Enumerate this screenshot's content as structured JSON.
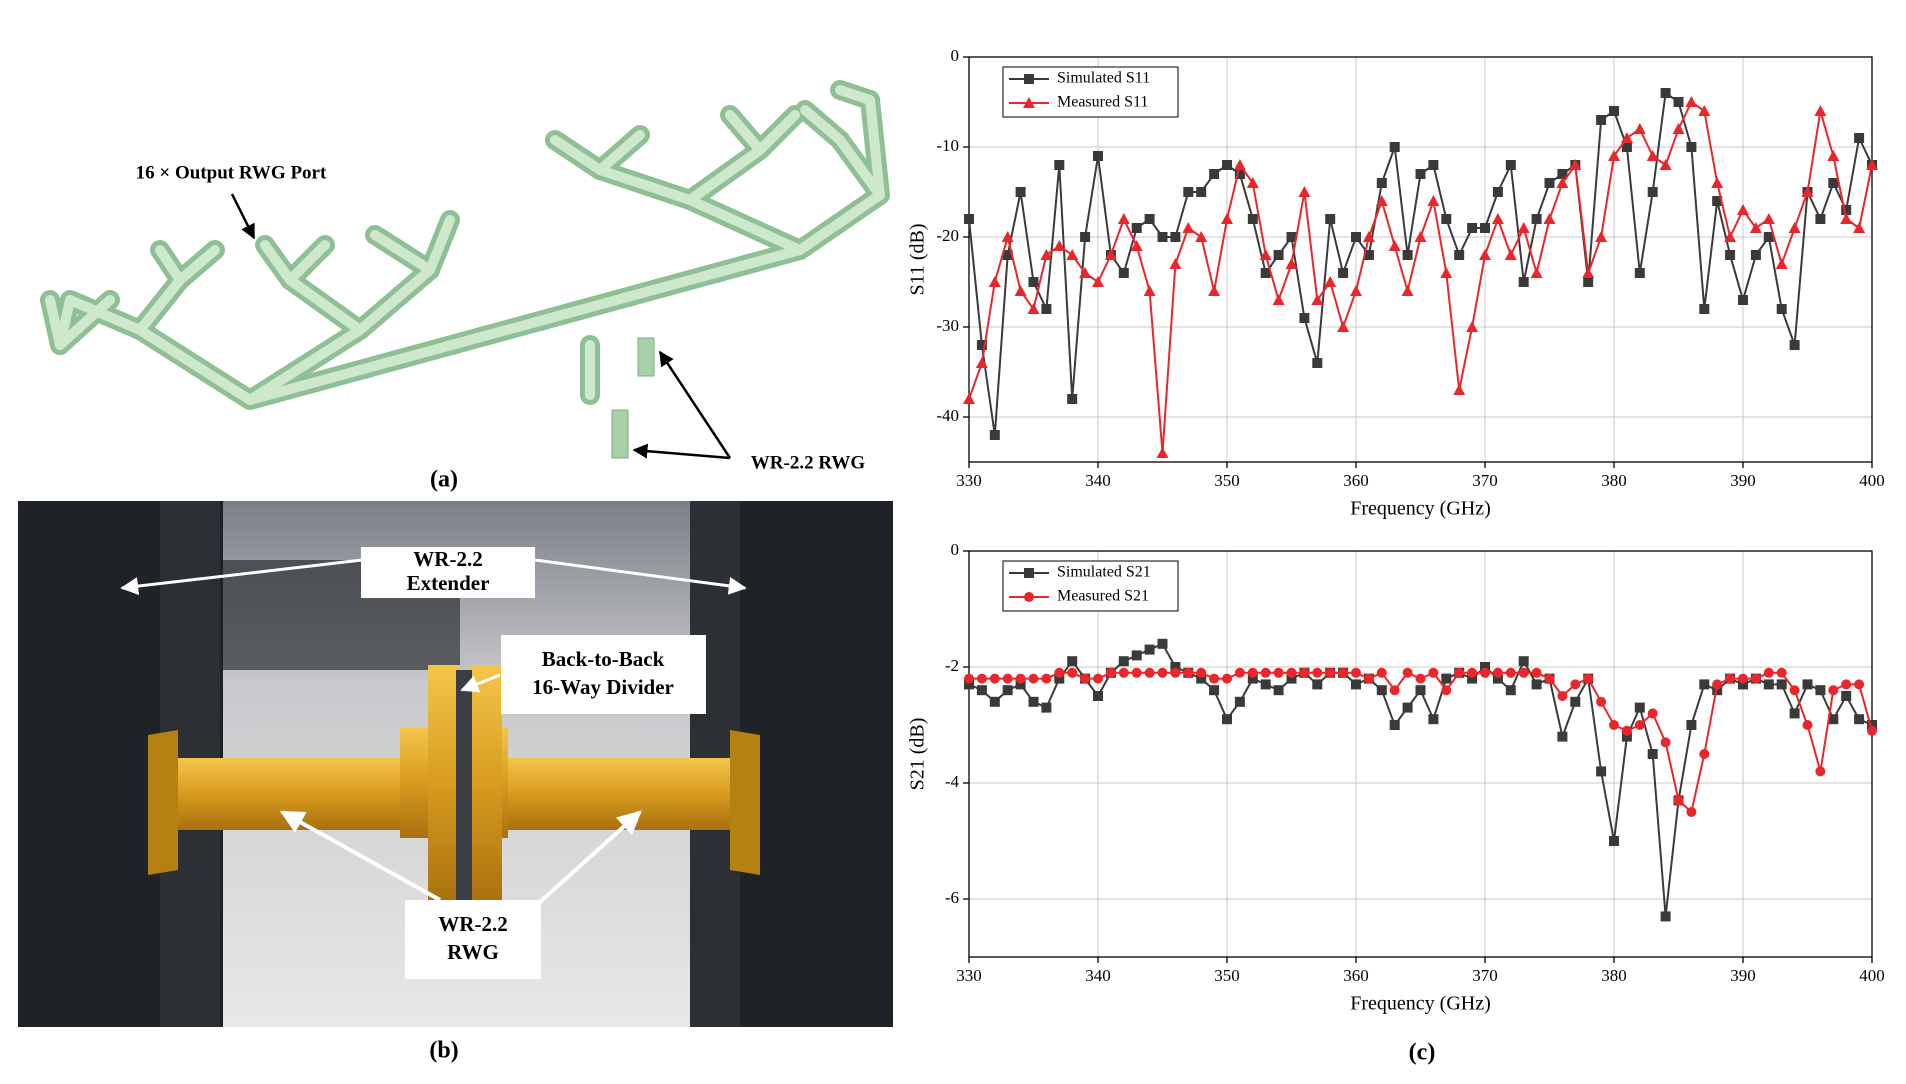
{
  "figure": {
    "panel_a": "(a)",
    "panel_b": "(b)",
    "panel_c": "(c)",
    "output_port_label": "16 × Output RWG Port",
    "rwg_label_a": "WR-2.2 RWG",
    "extender_label": [
      "WR-2.2",
      "Extender"
    ],
    "divider_label": [
      "Back-to-Back",
      "16-Way Divider"
    ],
    "rwg_label_b": [
      "WR-2.2",
      "RWG"
    ]
  },
  "chart_data": [
    {
      "type": "line",
      "xlabel": "Frequency (GHz)",
      "ylabel": "S11 (dB)",
      "x": [
        330,
        331,
        332,
        333,
        334,
        335,
        336,
        337,
        338,
        339,
        340,
        341,
        342,
        343,
        344,
        345,
        346,
        347,
        348,
        349,
        350,
        351,
        352,
        353,
        354,
        355,
        356,
        357,
        358,
        359,
        360,
        361,
        362,
        363,
        364,
        365,
        366,
        367,
        368,
        369,
        370,
        371,
        372,
        373,
        374,
        375,
        376,
        377,
        378,
        379,
        380,
        381,
        382,
        383,
        384,
        385,
        386,
        387,
        388,
        389,
        390,
        391,
        392,
        393,
        394,
        395,
        396,
        397,
        398,
        399,
        400
      ],
      "series": [
        {
          "name": "Simulated S11",
          "color": "#3a3a3a",
          "marker": "square",
          "values": [
            -18,
            -32,
            -42,
            -22,
            -15,
            -25,
            -28,
            -12,
            -38,
            -20,
            -11,
            -22,
            -24,
            -19,
            -18,
            -20,
            -20,
            -15,
            -15,
            -13,
            -12,
            -13,
            -18,
            -24,
            -22,
            -20,
            -29,
            -34,
            -18,
            -24,
            -20,
            -22,
            -14,
            -10,
            -22,
            -13,
            -12,
            -18,
            -22,
            -19,
            -19,
            -15,
            -12,
            -25,
            -18,
            -14,
            -13,
            -12,
            -25,
            -7,
            -6,
            -10,
            -24,
            -15,
            -4,
            -5,
            -10,
            -28,
            -16,
            -22,
            -27,
            -22,
            -20,
            -28,
            -32,
            -15,
            -18,
            -14,
            -17,
            -9,
            -12
          ]
        },
        {
          "name": "Measured S11",
          "color": "#e8262b",
          "marker": "triangle",
          "values": [
            -38,
            -34,
            -25,
            -20,
            -26,
            -28,
            -22,
            -21,
            -22,
            -24,
            -25,
            -22,
            -18,
            -21,
            -26,
            -44,
            -23,
            -19,
            -20,
            -26,
            -18,
            -12,
            -14,
            -22,
            -27,
            -23,
            -15,
            -27,
            -25,
            -30,
            -26,
            -20,
            -16,
            -21,
            -26,
            -20,
            -16,
            -24,
            -37,
            -30,
            -22,
            -18,
            -22,
            -19,
            -24,
            -18,
            -14,
            -12,
            -24,
            -20,
            -11,
            -9,
            -8,
            -11,
            -12,
            -8,
            -5,
            -6,
            -14,
            -20,
            -17,
            -19,
            -18,
            -23,
            -19,
            -15,
            -6,
            -11,
            -18,
            -19,
            -12
          ]
        }
      ],
      "xlim": [
        330,
        400
      ],
      "xticks": [
        330,
        340,
        350,
        360,
        370,
        380,
        390,
        400
      ],
      "ylim": [
        -45,
        0
      ],
      "yticks": [
        0,
        -10,
        -20,
        -30,
        -40
      ],
      "grid": true,
      "legend": "upper left"
    },
    {
      "type": "line",
      "xlabel": "Frequency (GHz)",
      "ylabel": "S21 (dB)",
      "x": [
        330,
        331,
        332,
        333,
        334,
        335,
        336,
        337,
        338,
        339,
        340,
        341,
        342,
        343,
        344,
        345,
        346,
        347,
        348,
        349,
        350,
        351,
        352,
        353,
        354,
        355,
        356,
        357,
        358,
        359,
        360,
        361,
        362,
        363,
        364,
        365,
        366,
        367,
        368,
        369,
        370,
        371,
        372,
        373,
        374,
        375,
        376,
        377,
        378,
        379,
        380,
        381,
        382,
        383,
        384,
        385,
        386,
        387,
        388,
        389,
        390,
        391,
        392,
        393,
        394,
        395,
        396,
        397,
        398,
        399,
        400
      ],
      "series": [
        {
          "name": "Simulated S21",
          "color": "#3a3a3a",
          "marker": "square",
          "values": [
            -2.3,
            -2.4,
            -2.6,
            -2.4,
            -2.3,
            -2.6,
            -2.7,
            -2.2,
            -1.9,
            -2.2,
            -2.5,
            -2.1,
            -1.9,
            -1.8,
            -1.7,
            -1.6,
            -2.0,
            -2.1,
            -2.2,
            -2.4,
            -2.9,
            -2.6,
            -2.2,
            -2.3,
            -2.4,
            -2.2,
            -2.1,
            -2.3,
            -2.1,
            -2.1,
            -2.3,
            -2.2,
            -2.4,
            -3.0,
            -2.7,
            -2.4,
            -2.9,
            -2.2,
            -2.1,
            -2.2,
            -2.0,
            -2.2,
            -2.4,
            -1.9,
            -2.3,
            -2.2,
            -3.2,
            -2.6,
            -2.2,
            -3.8,
            -5.0,
            -3.2,
            -2.7,
            -3.5,
            -6.3,
            -4.3,
            -3.0,
            -2.3,
            -2.4,
            -2.2,
            -2.3,
            -2.2,
            -2.3,
            -2.3,
            -2.8,
            -2.3,
            -2.4,
            -2.9,
            -2.5,
            -2.9,
            -3.0
          ]
        },
        {
          "name": "Measured S21",
          "color": "#e8262b",
          "marker": "circle",
          "values": [
            -2.2,
            -2.2,
            -2.2,
            -2.2,
            -2.2,
            -2.2,
            -2.2,
            -2.1,
            -2.1,
            -2.2,
            -2.2,
            -2.1,
            -2.1,
            -2.1,
            -2.1,
            -2.1,
            -2.1,
            -2.1,
            -2.1,
            -2.2,
            -2.2,
            -2.1,
            -2.1,
            -2.1,
            -2.1,
            -2.1,
            -2.1,
            -2.1,
            -2.1,
            -2.1,
            -2.1,
            -2.2,
            -2.1,
            -2.4,
            -2.1,
            -2.2,
            -2.1,
            -2.4,
            -2.1,
            -2.1,
            -2.1,
            -2.1,
            -2.1,
            -2.1,
            -2.1,
            -2.2,
            -2.5,
            -2.3,
            -2.2,
            -2.6,
            -3.0,
            -3.1,
            -3.0,
            -2.8,
            -3.3,
            -4.3,
            -4.5,
            -3.5,
            -2.3,
            -2.2,
            -2.2,
            -2.2,
            -2.1,
            -2.1,
            -2.4,
            -3.0,
            -3.8,
            -2.4,
            -2.3,
            -2.3,
            -3.1
          ]
        }
      ],
      "xlim": [
        330,
        400
      ],
      "xticks": [
        330,
        340,
        350,
        360,
        370,
        380,
        390,
        400
      ],
      "ylim": [
        -7,
        0
      ],
      "yticks": [
        0,
        -2,
        -4,
        -6
      ],
      "grid": true,
      "legend": "upper left"
    }
  ]
}
